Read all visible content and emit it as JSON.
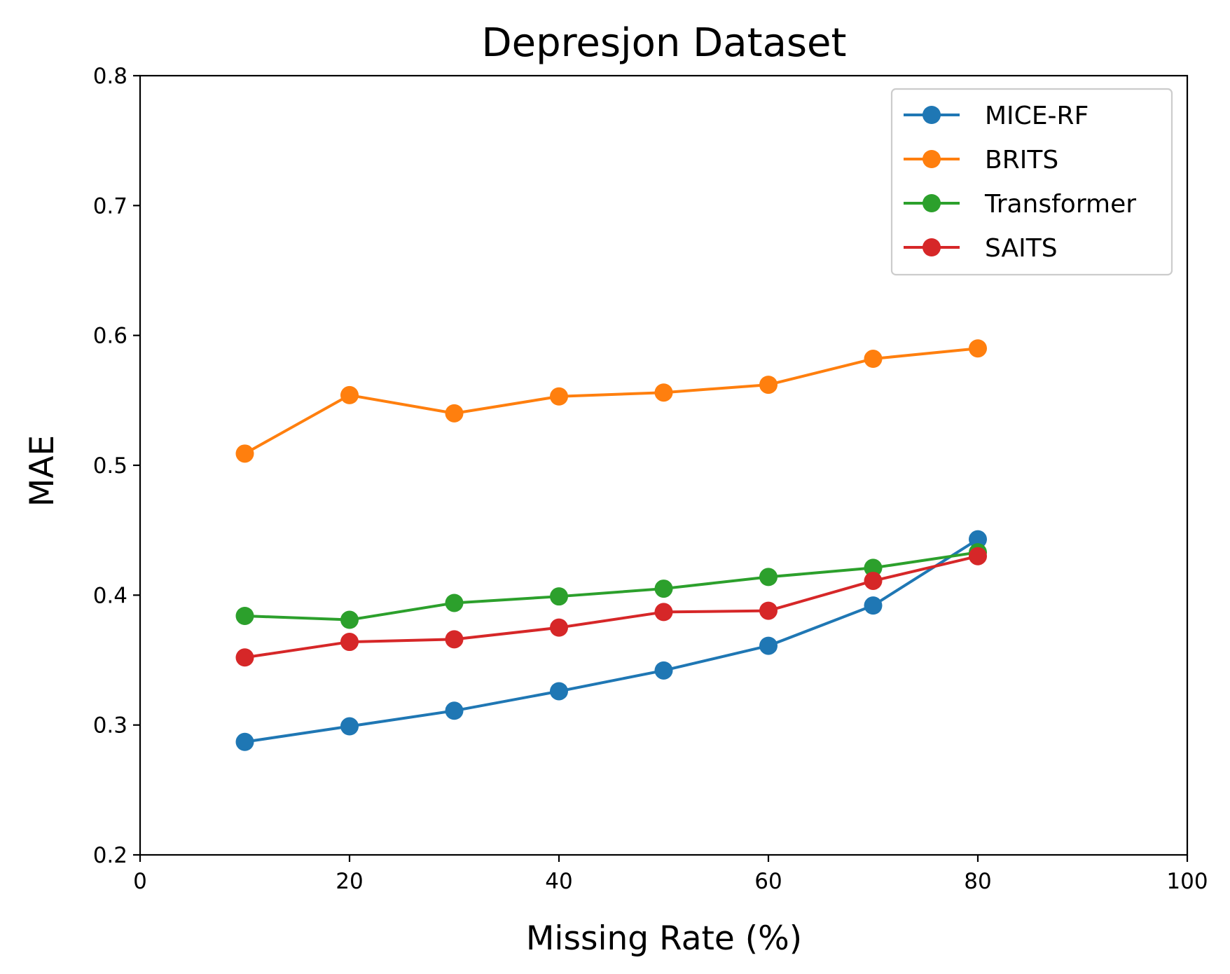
{
  "chart_data": {
    "type": "line",
    "title": "Depresjon Dataset",
    "xlabel": "Missing Rate (%)",
    "ylabel": "MAE",
    "xlim": [
      0,
      100
    ],
    "ylim": [
      0.2,
      0.8
    ],
    "x_ticks": [
      "0",
      "20",
      "40",
      "60",
      "80",
      "100"
    ],
    "y_ticks": [
      "0.2",
      "0.3",
      "0.4",
      "0.5",
      "0.6",
      "0.7",
      "0.8"
    ],
    "grid": false,
    "legend_position": "top-right",
    "x": [
      10,
      20,
      30,
      40,
      50,
      60,
      70,
      80
    ],
    "series": [
      {
        "name": "MICE-RF",
        "color": "#1f77b4",
        "values": [
          0.287,
          0.299,
          0.311,
          0.326,
          0.342,
          0.361,
          0.392,
          0.443
        ]
      },
      {
        "name": "BRITS",
        "color": "#ff7f0e",
        "values": [
          0.509,
          0.554,
          0.54,
          0.553,
          0.556,
          0.562,
          0.582,
          0.59
        ]
      },
      {
        "name": "Transformer",
        "color": "#2ca02c",
        "values": [
          0.384,
          0.381,
          0.394,
          0.399,
          0.405,
          0.414,
          0.421,
          0.433
        ]
      },
      {
        "name": "SAITS",
        "color": "#d62728",
        "values": [
          0.352,
          0.364,
          0.366,
          0.375,
          0.387,
          0.388,
          0.411,
          0.43
        ]
      }
    ]
  }
}
